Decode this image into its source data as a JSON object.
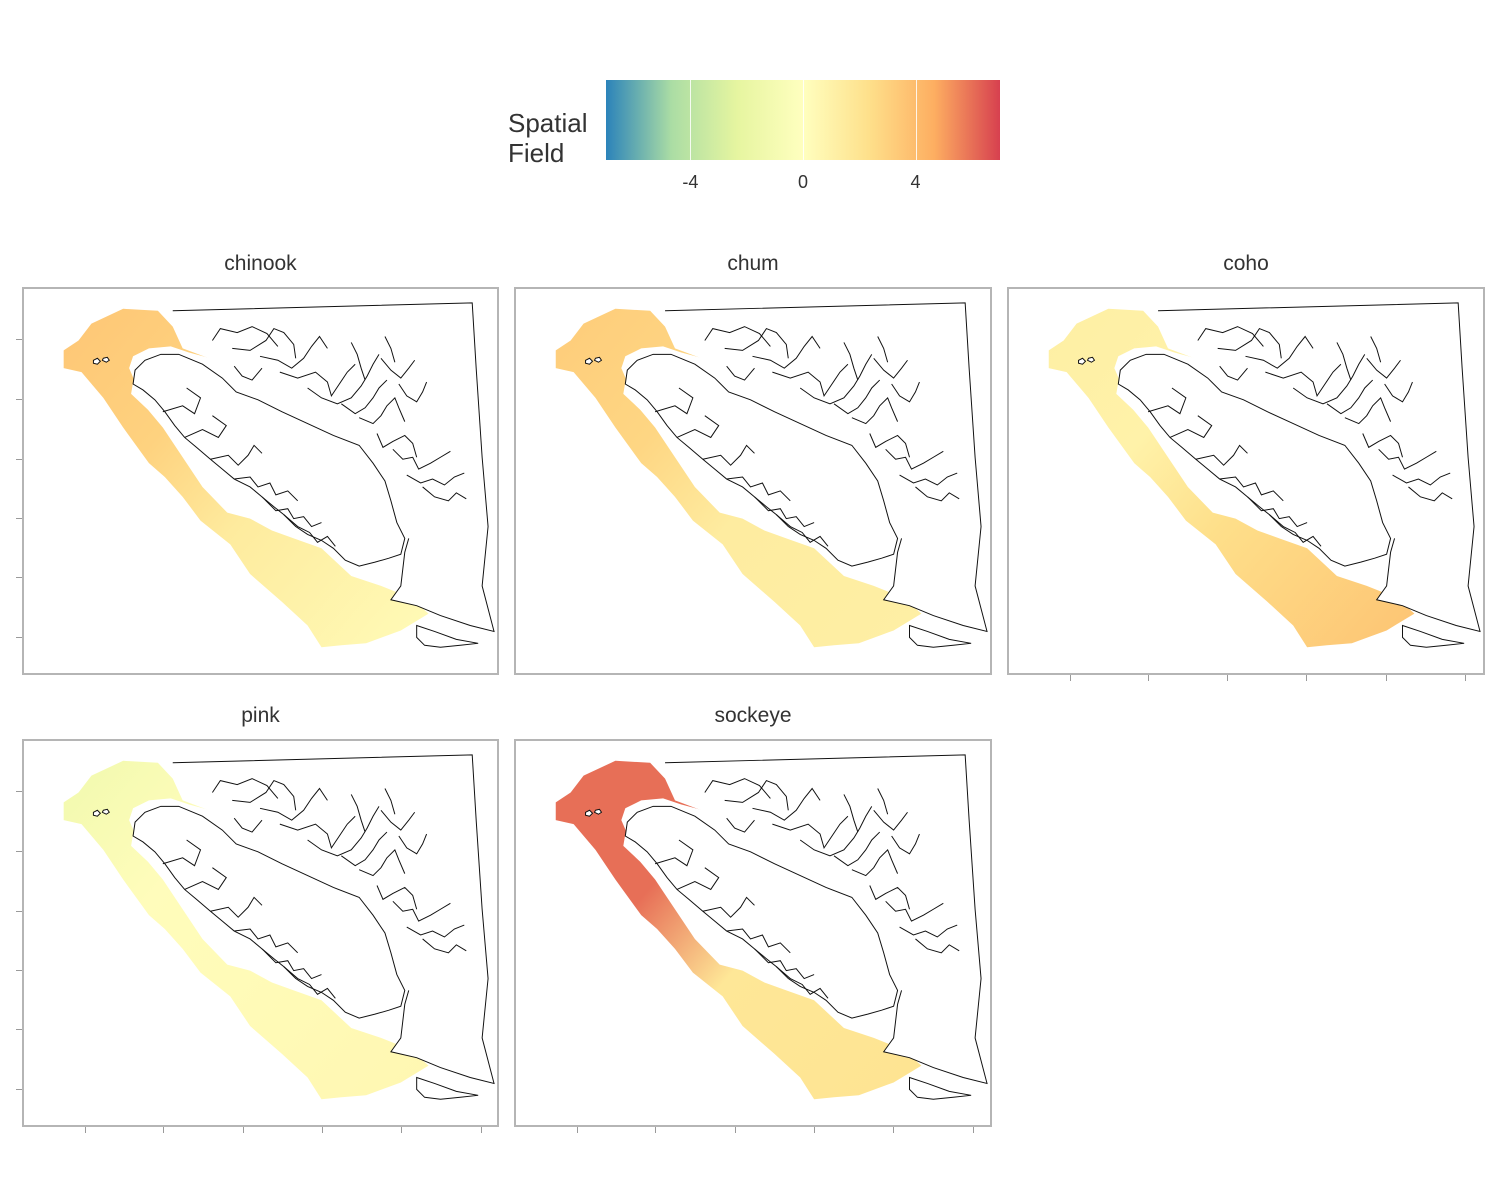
{
  "legend": {
    "title_line1": "Spatial",
    "title_line2": "Field",
    "ticks": [
      {
        "label": "-4",
        "value": -4
      },
      {
        "label": "0",
        "value": 0
      },
      {
        "label": "4",
        "value": 4
      }
    ],
    "range": [
      -7,
      7
    ],
    "colors": [
      "#2b83ba",
      "#abdda4",
      "#e6f5a0",
      "#ffffbf",
      "#fee08b",
      "#fdae61",
      "#d7404f"
    ]
  },
  "facets": [
    {
      "name": "chinook",
      "field_levels": {
        "north": 3.5,
        "strait": 3.0,
        "coast": 1.5,
        "south": 0.4
      }
    },
    {
      "name": "chum",
      "field_levels": {
        "north": 3.2,
        "strait": 2.8,
        "coast": 1.4,
        "south": 1.2
      }
    },
    {
      "name": "coho",
      "field_levels": {
        "north": 1.2,
        "strait": 1.0,
        "coast": 2.4,
        "south": 3.6
      }
    },
    {
      "name": "pink",
      "field_levels": {
        "north": -1.2,
        "strait": 0.2,
        "coast": 0.3,
        "south": 0.6
      }
    },
    {
      "name": "sockeye",
      "field_levels": {
        "north": 6.0,
        "strait": 6.0,
        "coast": 1.8,
        "south": 2.0
      }
    }
  ]
}
